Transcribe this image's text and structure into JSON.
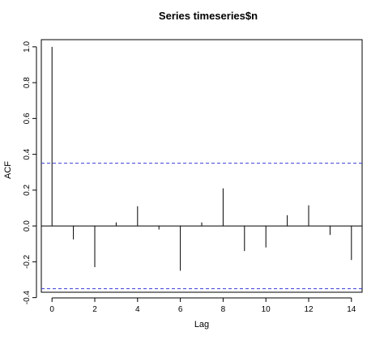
{
  "chart_data": {
    "type": "bar",
    "title": "Series  timeseries$n",
    "xlabel": "Lag",
    "ylabel": "ACF",
    "xlim": [
      -0.5,
      14.5
    ],
    "ylim": [
      -0.37,
      1.04
    ],
    "x_ticks": [
      0,
      2,
      4,
      6,
      8,
      10,
      12,
      14
    ],
    "y_ticks": [
      -0.4,
      -0.2,
      0.0,
      0.2,
      0.4,
      0.6,
      0.8,
      1.0
    ],
    "x_tick_labels": [
      "0",
      "2",
      "4",
      "6",
      "8",
      "10",
      "12",
      "14"
    ],
    "y_tick_labels": [
      "-0.4",
      "-0.2",
      "0.0",
      "0.2",
      "0.4",
      "0.6",
      "0.8",
      "1.0"
    ],
    "lags": [
      0,
      1,
      2,
      3,
      4,
      5,
      6,
      7,
      8,
      9,
      10,
      11,
      12,
      13,
      14
    ],
    "values": [
      1.0,
      -0.075,
      -0.23,
      0.02,
      0.11,
      -0.02,
      -0.25,
      0.02,
      0.21,
      -0.14,
      -0.12,
      0.06,
      0.115,
      -0.05,
      -0.19
    ],
    "confidence_bound": 0.35,
    "confidence_line_color": "#3b3bdc",
    "grid": false,
    "legend": "none"
  }
}
